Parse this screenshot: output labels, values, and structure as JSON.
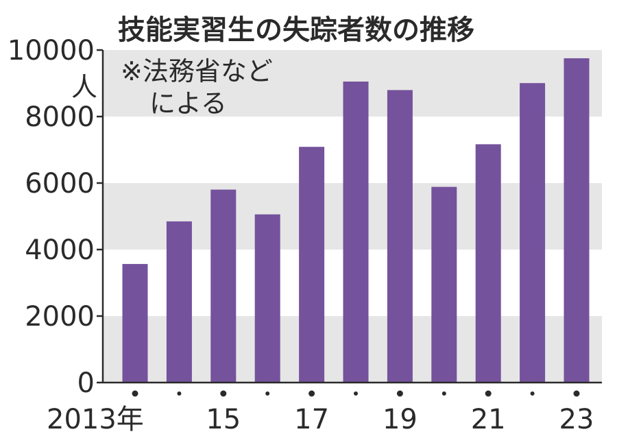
{
  "chart_data": {
    "type": "bar",
    "title": "技能実習生の失踪者数の推移",
    "unit": "人",
    "note_lines": [
      "※法務省など",
      "による"
    ],
    "categories": [
      "2013",
      "2014",
      "2015",
      "2016",
      "2017",
      "2018",
      "2019",
      "2020",
      "2021",
      "2022",
      "2023"
    ],
    "x_tick_labels": [
      "2013年",
      "",
      "15",
      "",
      "17",
      "",
      "19",
      "",
      "21",
      "",
      "23"
    ],
    "values": [
      3566,
      4847,
      5803,
      5058,
      7089,
      9052,
      8796,
      5885,
      7167,
      9006,
      9753
    ],
    "ylim": [
      0,
      10000
    ],
    "yticks": [
      0,
      2000,
      4000,
      6000,
      8000,
      10000
    ],
    "ytick_labels": [
      "0",
      "2000",
      "4000",
      "6000",
      "8000",
      "10000"
    ],
    "bar_color": "#74529c",
    "band_color": "#e6e6e6",
    "grid": "alternating horizontal bands"
  }
}
